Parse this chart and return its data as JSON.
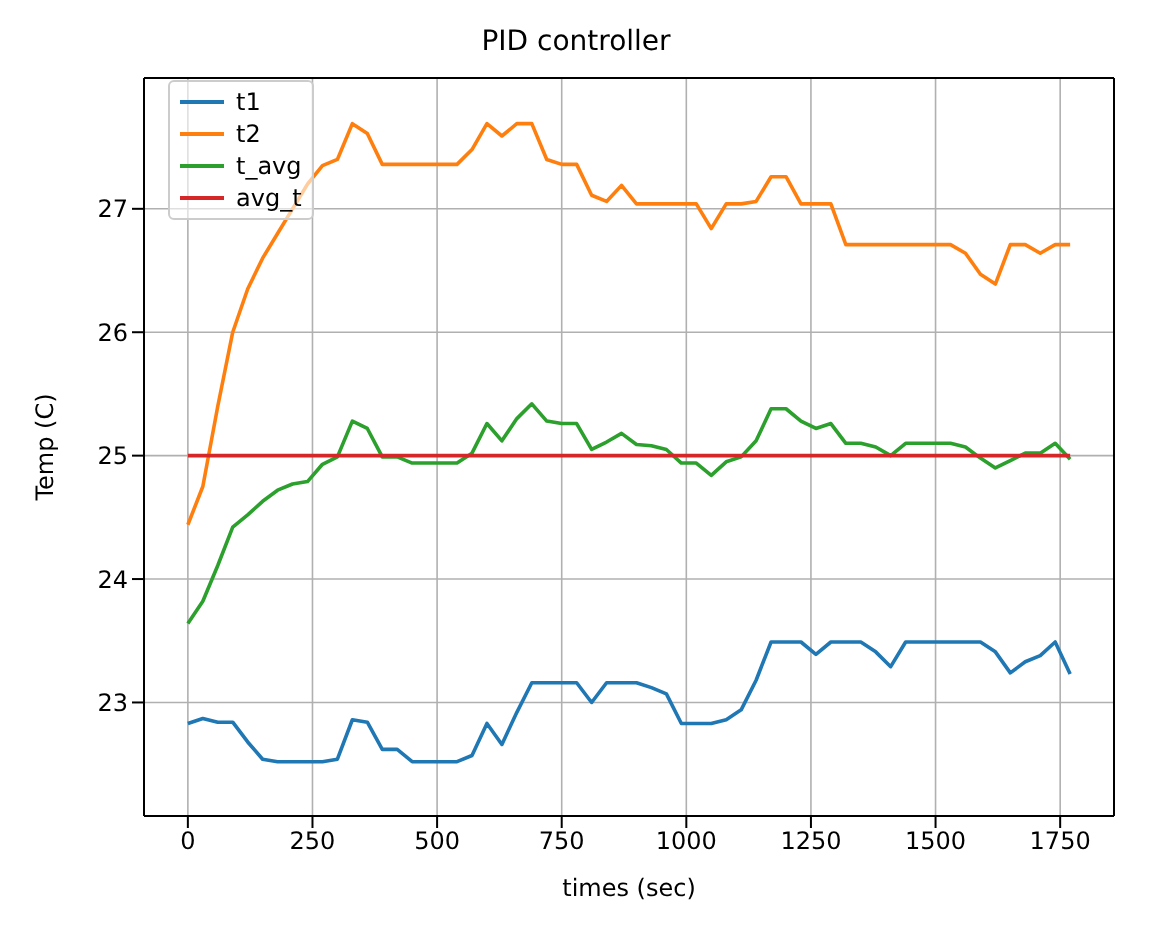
{
  "chart_data": {
    "type": "line",
    "title": "PID controller",
    "xlabel": "times (sec)",
    "ylabel": "Temp (C)",
    "x": [
      0,
      30,
      60,
      90,
      120,
      150,
      180,
      210,
      240,
      270,
      300,
      330,
      360,
      390,
      420,
      450,
      480,
      510,
      540,
      570,
      600,
      630,
      660,
      690,
      720,
      750,
      780,
      810,
      840,
      870,
      900,
      930,
      960,
      990,
      1020,
      1050,
      1080,
      1110,
      1140,
      1170,
      1200,
      1230,
      1260,
      1290,
      1320,
      1350,
      1380,
      1410,
      1440,
      1470,
      1500,
      1530,
      1560,
      1590,
      1620,
      1650,
      1680,
      1710,
      1740,
      1770
    ],
    "series": [
      {
        "name": "t1",
        "color": "#1f77b4",
        "values": [
          22.83,
          22.87,
          22.84,
          22.84,
          22.68,
          22.54,
          22.52,
          22.52,
          22.52,
          22.52,
          22.54,
          22.86,
          22.84,
          22.62,
          22.62,
          22.52,
          22.52,
          22.52,
          22.52,
          22.57,
          22.83,
          22.66,
          22.92,
          23.16,
          23.16,
          23.16,
          23.16,
          23.0,
          23.16,
          23.16,
          23.16,
          23.12,
          23.07,
          22.83,
          22.83,
          22.83,
          22.86,
          22.94,
          23.18,
          23.49,
          23.49,
          23.49,
          23.39,
          23.49,
          23.49,
          23.49,
          23.41,
          23.29,
          23.49,
          23.49,
          23.49,
          23.49,
          23.49,
          23.49,
          23.41,
          23.24,
          23.33,
          23.38,
          23.49,
          23.23
        ]
      },
      {
        "name": "t2",
        "color": "#ff7f0e",
        "values": [
          24.44,
          24.75,
          25.4,
          26.0,
          26.35,
          26.6,
          26.8,
          27.0,
          27.2,
          27.35,
          27.4,
          27.69,
          27.61,
          27.36,
          27.36,
          27.36,
          27.36,
          27.36,
          27.36,
          27.48,
          27.69,
          27.59,
          27.69,
          27.69,
          27.4,
          27.36,
          27.36,
          27.11,
          27.06,
          27.19,
          27.04,
          27.04,
          27.04,
          27.04,
          27.04,
          26.84,
          27.04,
          27.04,
          27.06,
          27.26,
          27.26,
          27.04,
          27.04,
          27.04,
          26.71,
          26.71,
          26.71,
          26.71,
          26.71,
          26.71,
          26.71,
          26.71,
          26.64,
          26.47,
          26.39,
          26.71,
          26.71,
          26.64,
          26.71,
          26.71
        ]
      },
      {
        "name": "t_avg",
        "color": "#2ca02c",
        "values": [
          23.64,
          23.82,
          24.11,
          24.42,
          24.52,
          24.63,
          24.72,
          24.77,
          24.79,
          24.93,
          24.99,
          25.28,
          25.22,
          24.99,
          24.99,
          24.94,
          24.94,
          24.94,
          24.94,
          25.02,
          25.26,
          25.12,
          25.3,
          25.42,
          25.28,
          25.26,
          25.26,
          25.05,
          25.11,
          25.18,
          25.09,
          25.08,
          25.05,
          24.94,
          24.94,
          24.84,
          24.95,
          24.99,
          25.12,
          25.38,
          25.38,
          25.28,
          25.22,
          25.26,
          25.1,
          25.1,
          25.07,
          25.0,
          25.1,
          25.1,
          25.1,
          25.1,
          25.07,
          24.98,
          24.9,
          24.96,
          25.02,
          25.02,
          25.1,
          24.97
        ]
      },
      {
        "name": "avg_t",
        "color": "#d62728",
        "x": [
          0,
          1770
        ],
        "values": [
          25,
          25
        ]
      }
    ],
    "xlim": [
      -88,
      1858
    ],
    "ylim": [
      22.08,
      28.06
    ],
    "xticks": [
      0,
      250,
      500,
      750,
      1000,
      1250,
      1500,
      1750
    ],
    "yticks": [
      23,
      24,
      25,
      26,
      27
    ],
    "grid": true,
    "legend": "top left",
    "marker": "none",
    "line_style": "solid"
  }
}
